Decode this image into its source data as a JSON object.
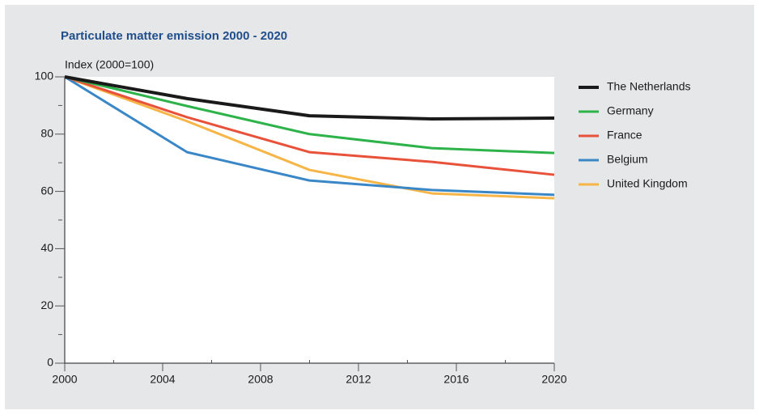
{
  "chart_data": {
    "type": "line",
    "title": "Particulate matter emission  2000 - 2020",
    "y_label": "Index (2000=100)",
    "x": [
      2000,
      2005,
      2010,
      2015,
      2020
    ],
    "xlim": [
      2000,
      2020
    ],
    "xticks": [
      2000,
      2004,
      2008,
      2012,
      2016,
      2020
    ],
    "x_minor_ticks": [
      2002,
      2006,
      2010,
      2014,
      2018
    ],
    "ylim": [
      0,
      100
    ],
    "yticks": [
      0,
      20,
      40,
      60,
      80,
      100
    ],
    "y_minor_ticks": [
      10,
      30,
      50,
      70,
      90
    ],
    "legend": "right",
    "series": [
      {
        "name": "The Netherlands",
        "color": "#1a1a1a",
        "values": [
          100,
          92.4,
          86.4,
          85.3,
          85.6
        ]
      },
      {
        "name": "Germany",
        "color": "#2db34a",
        "values": [
          100,
          89.8,
          80,
          75.1,
          73.4
        ]
      },
      {
        "name": "France",
        "color": "#e8523a",
        "values": [
          100,
          85.9,
          73.7,
          70.3,
          65.8
        ]
      },
      {
        "name": "Belgium",
        "color": "#3a87c8",
        "values": [
          100,
          73.7,
          63.8,
          60.5,
          58.8
        ]
      },
      {
        "name": "United Kingdom",
        "color": "#f6b546",
        "values": [
          100,
          84.5,
          67.5,
          59.3,
          57.6
        ]
      }
    ]
  }
}
